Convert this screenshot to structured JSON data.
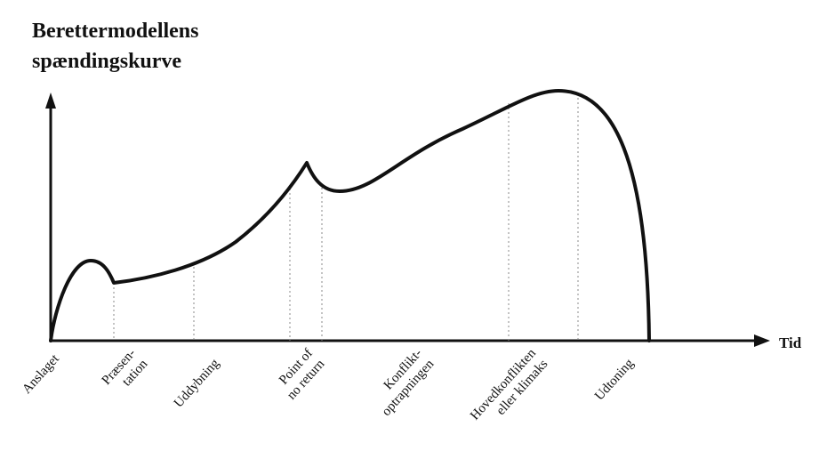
{
  "title_line1": "Berettermodellens",
  "title_line2": "spændingskurve",
  "x_axis_label": "Tid",
  "stages": [
    {
      "line1": "Anslaget",
      "line2": ""
    },
    {
      "line1": "Præsen-",
      "line2": "tation"
    },
    {
      "line1": "Uddybning",
      "line2": ""
    },
    {
      "line1": "Point of",
      "line2": "no return"
    },
    {
      "line1": "Konflikt-",
      "line2": "optrapningen"
    },
    {
      "line1": "Hovedkonflikten",
      "line2": "eller klimaks"
    },
    {
      "line1": "Udtoning",
      "line2": ""
    }
  ]
}
